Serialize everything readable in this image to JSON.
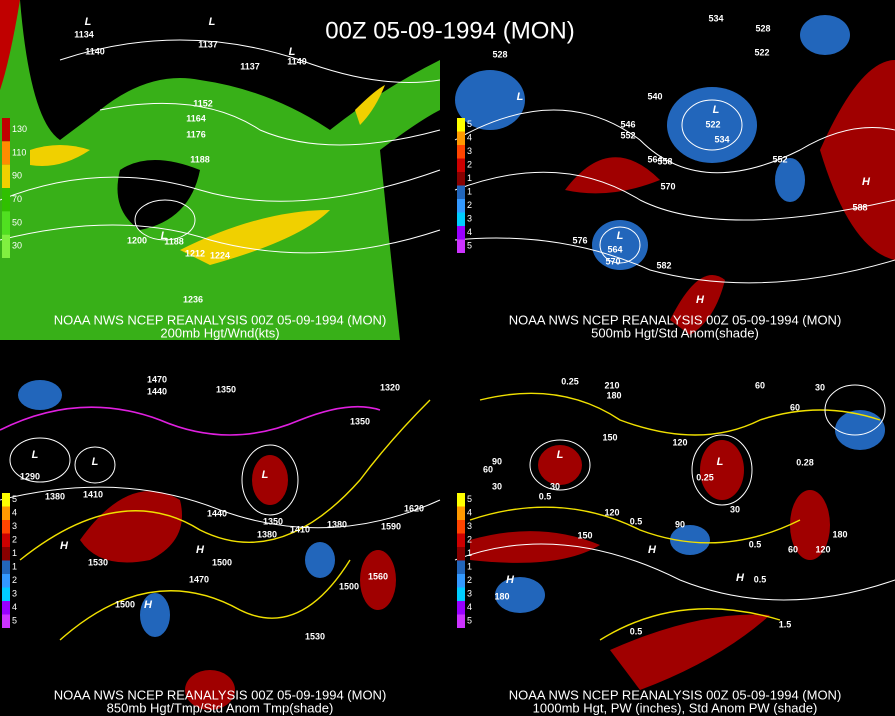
{
  "title": "00Z 05-09-1994 (MON)",
  "panels": [
    {
      "source": "NOAA NWS NCEP REANALYSIS 00Z 05-09-1994 (MON)",
      "caption": "200mb Hgt/Wnd(kts)",
      "legend": [
        "130",
        "110",
        "90",
        "70",
        "50",
        "30"
      ],
      "legend_colors": [
        "#c00000",
        "#ff8c00",
        "#f0d000",
        "#30c000",
        "#50e020",
        "#80f040"
      ],
      "labels": [
        "1134",
        "1140",
        "1137",
        "1137",
        "1140",
        "1152",
        "1164",
        "1176",
        "1188",
        "1200",
        "1188",
        "1212",
        "1224",
        "1236"
      ],
      "centers": [
        "L",
        "L",
        "L",
        "L"
      ]
    },
    {
      "source": "NOAA NWS NCEP REANALYSIS 00Z 05-09-1994 (MON)",
      "caption": "500mb Hgt/Std Anom(shade)",
      "legend": [
        "5",
        "4",
        "3",
        "2",
        "1",
        "1",
        "2",
        "3",
        "4",
        "5"
      ],
      "legend_colors": [
        "#ffff00",
        "#ff9900",
        "#ff4400",
        "#cc0000",
        "#880000",
        "#2266bb",
        "#3399ff",
        "#00ccff",
        "#9900ff",
        "#cc33ff"
      ],
      "labels": [
        "534",
        "528",
        "522",
        "546",
        "552",
        "540",
        "522",
        "534",
        "564",
        "558",
        "570",
        "552",
        "588",
        "576",
        "564",
        "570",
        "582",
        "528"
      ],
      "centers": [
        "L",
        "L",
        "L",
        "H",
        "H"
      ]
    },
    {
      "source": "NOAA NWS NCEP REANALYSIS 00Z 05-09-1994 (MON)",
      "caption": "850mb Hgt/Tmp/Std Anom Tmp(shade)",
      "legend": [
        "5",
        "4",
        "3",
        "2",
        "1",
        "1",
        "2",
        "3",
        "4",
        "5"
      ],
      "legend_colors": [
        "#ffff00",
        "#ff9900",
        "#ff4400",
        "#cc0000",
        "#880000",
        "#2266bb",
        "#3399ff",
        "#00ccff",
        "#9900ff",
        "#cc33ff"
      ],
      "labels": [
        "1470",
        "1440",
        "1350",
        "1320",
        "1350",
        "1290",
        "1380",
        "1410",
        "1440",
        "1350",
        "1380",
        "1410",
        "1380",
        "1590",
        "1620",
        "1530",
        "1500",
        "1470",
        "1500",
        "1500",
        "1560",
        "1530"
      ],
      "centers": [
        "L",
        "L",
        "L",
        "H",
        "H",
        "H"
      ]
    },
    {
      "source": "NOAA NWS NCEP REANALYSIS 00Z 05-09-1994 (MON)",
      "caption": "1000mb Hgt, PW (inches), Std Anom PW (shade)",
      "legend": [
        "5",
        "4",
        "3",
        "2",
        "1",
        "1",
        "2",
        "3",
        "4",
        "5"
      ],
      "legend_colors": [
        "#ffff00",
        "#ff9900",
        "#ff4400",
        "#cc0000",
        "#880000",
        "#2266bb",
        "#3399ff",
        "#00ccff",
        "#9900ff",
        "#cc33ff"
      ],
      "labels": [
        "0.25",
        "210",
        "180",
        "60",
        "30",
        "60",
        "120",
        "150",
        "90",
        "60",
        "30",
        "30",
        "0.5",
        "0.25",
        "30",
        "90",
        "150",
        "120",
        "0.5",
        "0.5",
        "60",
        "120",
        "180",
        "0.28",
        "0.5",
        "1.5",
        "0.5",
        "180"
      ],
      "centers": [
        "L",
        "L",
        "H",
        "H",
        "H"
      ]
    }
  ]
}
